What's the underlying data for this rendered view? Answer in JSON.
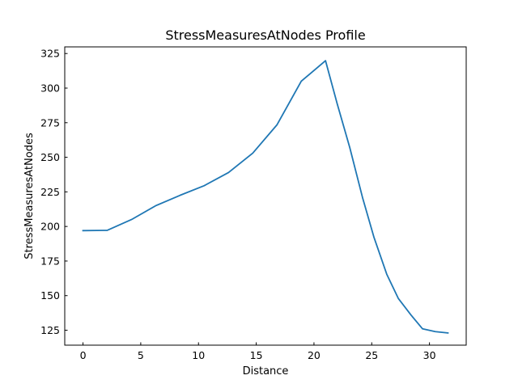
{
  "chart_data": {
    "type": "line",
    "title": "StressMeasuresAtNodes Profile",
    "xlabel": "Distance",
    "ylabel": "StressMeasuresAtNodes",
    "xlim": [
      -1.58,
      33.18
    ],
    "ylim": [
      114.2,
      329.8
    ],
    "xticks": [
      0,
      5,
      10,
      15,
      20,
      25,
      30
    ],
    "yticks": [
      125,
      150,
      175,
      200,
      225,
      250,
      275,
      300,
      325
    ],
    "grid": false,
    "legend": "none",
    "series": [
      {
        "color": "#1f77b4",
        "x": [
          0,
          2.1,
          4.2,
          6.3,
          8.4,
          10.5,
          12.6,
          14.7,
          16.8,
          18.9,
          21.0,
          22.0,
          23.1,
          24.2,
          25.2,
          26.3,
          27.3,
          28.4,
          29.4,
          30.5,
          31.6
        ],
        "y": [
          197,
          197.2,
          205,
          215,
          222.5,
          229.5,
          239,
          253,
          273.5,
          305,
          319.8,
          289,
          257,
          221,
          192,
          165.5,
          148,
          136,
          126,
          124,
          123
        ]
      }
    ]
  }
}
